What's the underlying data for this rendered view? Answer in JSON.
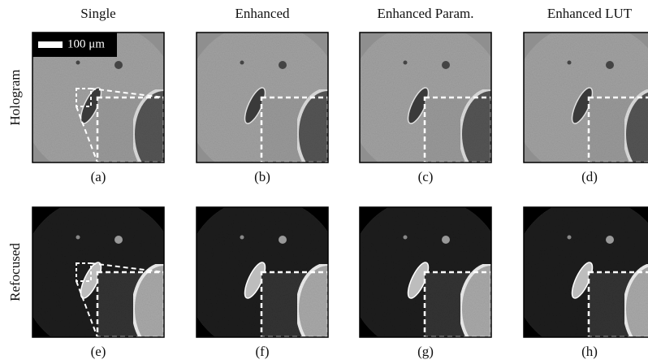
{
  "columns": [
    "Single",
    "Enhanced",
    "Enhanced Param.",
    "Enhanced LUT"
  ],
  "rows": [
    "Hologram",
    "Refocused"
  ],
  "panel_labels": [
    [
      "(a)",
      "(b)",
      "(c)",
      "(d)"
    ],
    [
      "(e)",
      "(f)",
      "(g)",
      "(h)"
    ]
  ],
  "scale_bar": "100 μm"
}
